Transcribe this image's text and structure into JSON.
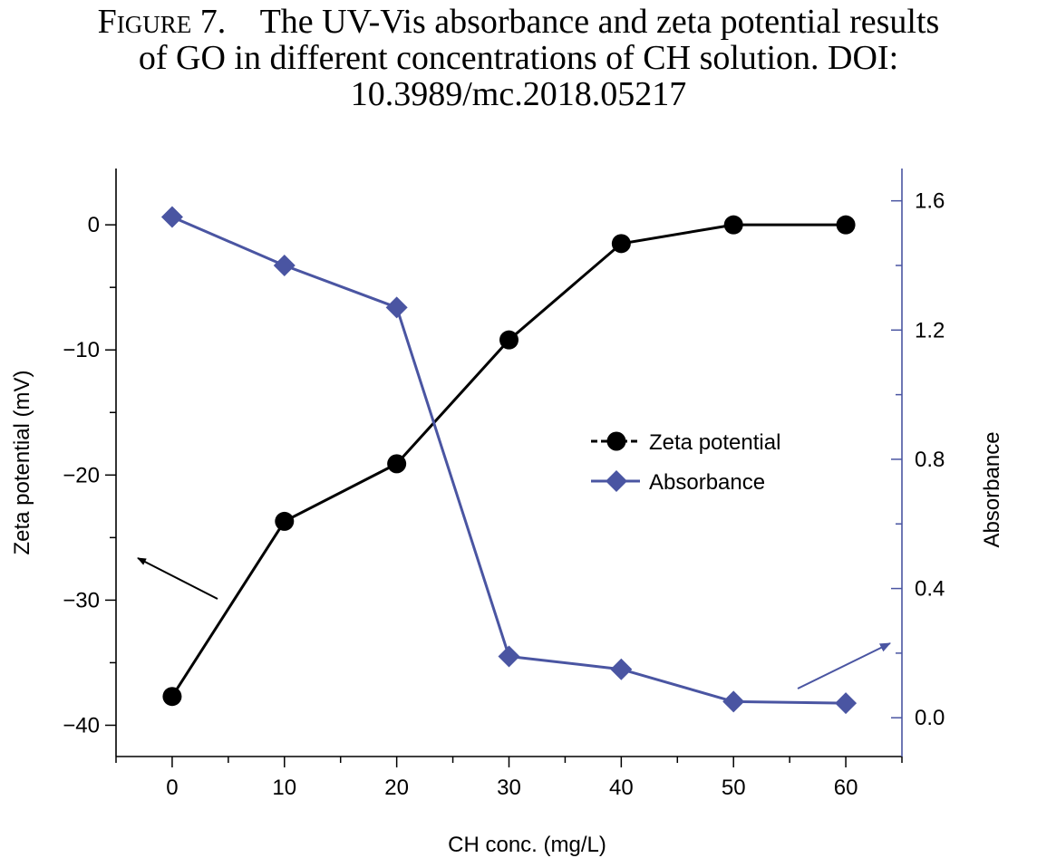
{
  "figure": {
    "label": "Figure 7.",
    "caption_lines": [
      "The UV-Vis absorbance and zeta potential results",
      "of GO in different concentrations of CH solution. DOI:",
      "10.3989/mc.2018.05217"
    ]
  },
  "chart_data": {
    "type": "line",
    "title": "",
    "xlabel": "CH conc. (mg/L)",
    "ylabel_left": "Zeta potential (mV)",
    "ylabel_right": "Absorbance",
    "x": [
      0,
      10,
      20,
      30,
      40,
      50,
      60
    ],
    "xlim": [
      -5,
      65
    ],
    "ylim_left": [
      -42.5,
      4.5
    ],
    "ylim_right": [
      -0.12,
      1.7
    ],
    "x_ticks": [
      0,
      10,
      20,
      30,
      40,
      50,
      60
    ],
    "y_left_ticks": [
      0,
      -10,
      -20,
      -30,
      -40
    ],
    "y_left_tick_labels": [
      "0",
      "−10",
      "−20",
      "−30",
      "−40"
    ],
    "y_right_ticks": [
      0.0,
      0.4,
      0.8,
      1.2,
      1.6
    ],
    "y_right_tick_labels": [
      "0.0",
      "0.4",
      "0.8",
      "1.2",
      "1.6"
    ],
    "series": [
      {
        "name": "Zeta potential",
        "axis": "left",
        "marker": "circle",
        "color": "#000000",
        "values": [
          -37.7,
          -23.7,
          -19.1,
          -9.2,
          -1.5,
          0.0,
          0.0
        ]
      },
      {
        "name": "Absorbance",
        "axis": "right",
        "marker": "diamond",
        "color": "#4a55a2",
        "values": [
          1.55,
          1.4,
          1.27,
          0.19,
          0.15,
          0.05,
          0.045
        ]
      }
    ],
    "legend_position": "center-right",
    "grid": false,
    "annotations": [
      {
        "type": "arrow",
        "points_to": "left-axis",
        "color": "#000000"
      },
      {
        "type": "arrow",
        "points_to": "right-axis",
        "color": "#4a55a2"
      }
    ]
  }
}
